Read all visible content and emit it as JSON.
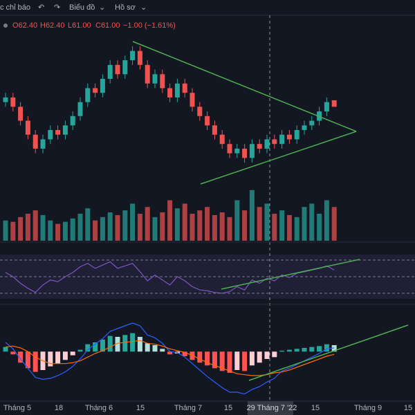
{
  "toolbar": [
    "c chỉ báo",
    "Biểu đồ",
    "Hồ sơ"
  ],
  "legend": [
    "O62.40",
    "H62.40",
    "L61.00",
    "C61.00",
    "−1.00 (−1.61%)"
  ],
  "chart_data": {
    "type": "candlestick",
    "candles": [
      [
        62,
        64,
        61,
        63
      ],
      [
        63,
        64,
        60,
        61
      ],
      [
        61,
        62,
        57,
        58
      ],
      [
        58,
        59,
        54,
        55
      ],
      [
        55,
        56,
        51,
        52
      ],
      [
        52,
        55,
        51,
        54
      ],
      [
        54,
        57,
        53,
        56
      ],
      [
        56,
        57,
        54,
        55
      ],
      [
        55,
        58,
        54,
        57
      ],
      [
        57,
        60,
        56,
        59
      ],
      [
        59,
        63,
        58,
        62
      ],
      [
        62,
        66,
        61,
        65
      ],
      [
        65,
        66,
        63,
        64
      ],
      [
        64,
        68,
        63,
        67
      ],
      [
        67,
        71,
        66,
        70
      ],
      [
        70,
        71,
        67,
        68
      ],
      [
        68,
        72,
        67,
        71
      ],
      [
        71,
        74,
        70,
        73
      ],
      [
        73,
        74,
        69,
        70
      ],
      [
        70,
        71,
        65,
        66
      ],
      [
        66,
        69,
        65,
        68
      ],
      [
        68,
        69,
        64,
        65
      ],
      [
        65,
        66,
        62,
        63
      ],
      [
        63,
        67,
        62,
        66
      ],
      [
        66,
        67,
        63,
        64
      ],
      [
        64,
        65,
        60,
        61
      ],
      [
        61,
        62,
        58,
        59
      ],
      [
        59,
        60,
        56,
        57
      ],
      [
        57,
        58,
        54,
        55
      ],
      [
        55,
        56,
        52,
        53
      ],
      [
        53,
        54,
        50,
        51
      ],
      [
        51,
        53,
        50,
        52
      ],
      [
        52,
        53,
        49,
        50
      ],
      [
        50,
        54,
        49,
        53
      ],
      [
        53,
        54,
        51,
        52
      ],
      [
        52,
        55,
        51,
        54
      ],
      [
        54,
        55,
        52,
        53
      ],
      [
        53,
        56,
        52,
        55
      ],
      [
        55,
        56,
        53,
        54
      ],
      [
        54,
        57,
        53,
        56
      ],
      [
        56,
        58,
        55,
        57
      ],
      [
        57,
        59,
        56,
        58
      ],
      [
        58,
        61,
        57,
        60
      ],
      [
        60,
        63,
        59,
        62
      ],
      [
        62.4,
        62.4,
        61,
        61
      ]
    ],
    "ylim": [
      45,
      78
    ],
    "volume": [
      30,
      28,
      35,
      40,
      45,
      38,
      30,
      25,
      28,
      33,
      40,
      48,
      30,
      35,
      42,
      38,
      45,
      55,
      40,
      50,
      35,
      42,
      60,
      48,
      55,
      40,
      45,
      50,
      38,
      42,
      35,
      60,
      45,
      75,
      50,
      55,
      40,
      45,
      38,
      35,
      50,
      55,
      40,
      60,
      50
    ],
    "vlim": [
      0,
      80
    ],
    "rsi": [
      55,
      50,
      42,
      36,
      31,
      40,
      46,
      44,
      50,
      55,
      62,
      66,
      60,
      64,
      68,
      60,
      63,
      66,
      56,
      45,
      52,
      46,
      40,
      50,
      45,
      38,
      34,
      33,
      31,
      30,
      32,
      38,
      34,
      46,
      42,
      48,
      45,
      52,
      49,
      54,
      56,
      58,
      60,
      63,
      58
    ],
    "rsi_lim": [
      0,
      100
    ],
    "rsi_levels": [
      70,
      50,
      30
    ],
    "macd_hist": [
      0.5,
      -0.3,
      -1.2,
      -1.8,
      -2.2,
      -2,
      -1.6,
      -1.3,
      -0.9,
      -0.4,
      0.2,
      0.8,
      1,
      1.3,
      1.7,
      1.6,
      1.8,
      2,
      1.6,
      0.9,
      0.7,
      0.3,
      -0.3,
      -0.2,
      -0.5,
      -0.9,
      -1.2,
      -1.5,
      -1.8,
      -2.1,
      -2.3,
      -2,
      -2.1,
      -1.5,
      -1.2,
      -0.8,
      -0.6,
      0.1,
      0.2,
      0.3,
      0.4,
      0.5,
      0.6,
      0.8,
      0.7
    ],
    "macd": [
      1,
      0.3,
      -0.8,
      -1.8,
      -2.8,
      -3,
      -2.9,
      -2.6,
      -2.2,
      -1.6,
      -0.8,
      0.2,
      0.8,
      1.4,
      2.2,
      2.5,
      2.8,
      3.1,
      2.8,
      1.8,
      1.5,
      0.9,
      0,
      -0.1,
      -0.6,
      -1.3,
      -2,
      -2.7,
      -3.3,
      -3.9,
      -4.4,
      -4.4,
      -4.6,
      -4.1,
      -3.8,
      -3.3,
      -2.9,
      -2.1,
      -1.8,
      -1.4,
      -1,
      -0.6,
      -0.2,
      0.3,
      0.4
    ],
    "macd_signal": [
      0.5,
      0.6,
      0.4,
      0,
      -0.6,
      -1,
      -1.3,
      -1.3,
      -1.3,
      -1.2,
      -1,
      -0.6,
      -0.2,
      0.1,
      0.5,
      0.9,
      1,
      1.1,
      1.2,
      0.9,
      0.8,
      0.6,
      0.3,
      0.1,
      -0.1,
      -0.4,
      -0.8,
      -1.2,
      -1.5,
      -1.8,
      -2.1,
      -2.4,
      -2.5,
      -2.6,
      -2.6,
      -2.5,
      -2.3,
      -2.2,
      -2,
      -1.7,
      -1.4,
      -1.1,
      -0.8,
      -0.5,
      -0.3
    ],
    "macd_lim": [
      -5,
      4
    ],
    "up_color": "#26a69a",
    "down_color": "#ef5350",
    "x_labels": [
      "Tháng 5",
      "18",
      "Tháng 6",
      "15",
      "Tháng 7",
      "15",
      "29 Tháng 7 '22",
      "15",
      "Tháng 9",
      "15"
    ]
  }
}
